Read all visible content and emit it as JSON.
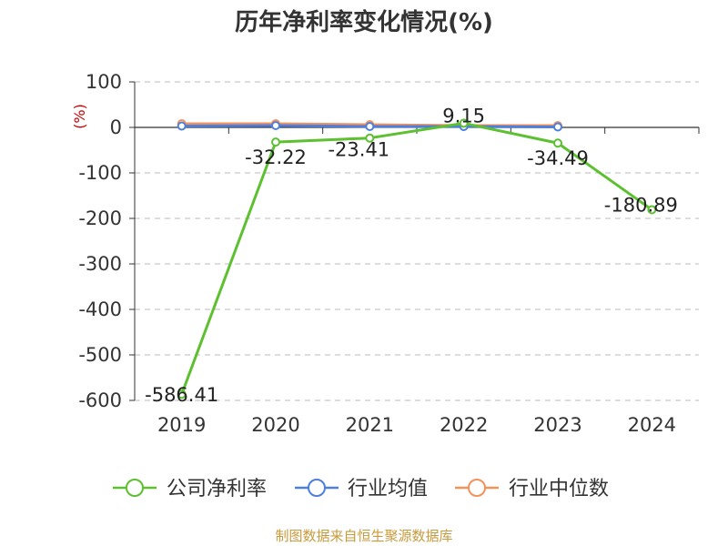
{
  "chart_data": {
    "type": "line",
    "title": "历年净利率变化情况(%)",
    "ylabel": "(%)",
    "categories": [
      "2019",
      "2020",
      "2021",
      "2022",
      "2023",
      "2024"
    ],
    "ylim": [
      -600,
      100
    ],
    "yticks": [
      100,
      0,
      -100,
      -200,
      -300,
      -400,
      -500,
      -600
    ],
    "grid": true,
    "legend_position": "bottom",
    "series": [
      {
        "name": "公司净利率",
        "color": "#5cc030",
        "values": [
          -586.41,
          -32.22,
          -23.41,
          9.15,
          -34.49,
          -180.89
        ],
        "labels": [
          "-586.41",
          "-32.22",
          "-23.41",
          "9.15",
          "-34.49",
          "-180.89"
        ]
      },
      {
        "name": "行业均值",
        "color": "#4f7fdc",
        "values": [
          3,
          4,
          2,
          2,
          1,
          null
        ]
      },
      {
        "name": "行业中位数",
        "color": "#f5915b",
        "values": [
          8,
          8,
          6,
          4,
          4,
          null
        ]
      }
    ]
  },
  "source": "制图数据来自恒生聚源数据库"
}
